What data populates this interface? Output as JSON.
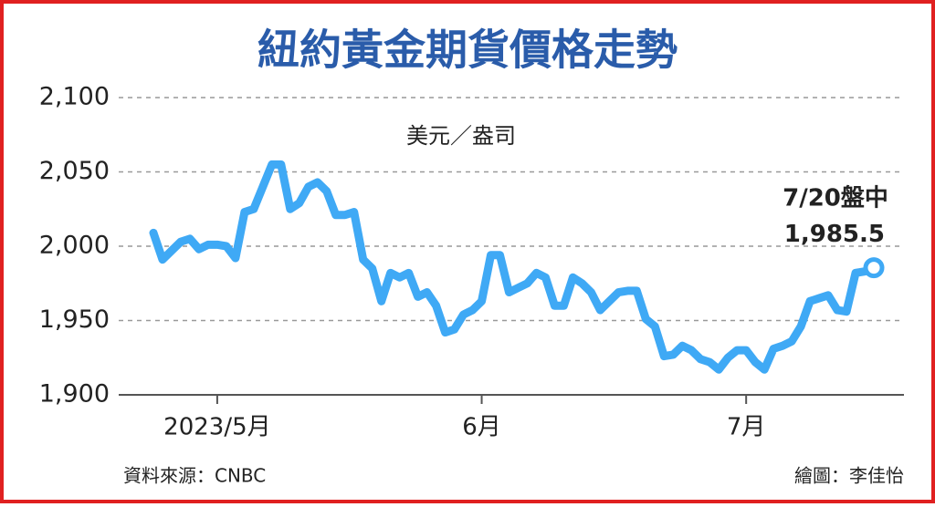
{
  "chart_data": {
    "type": "line",
    "title": "紐約黃金期貨價格走勢",
    "y_label": "美元／盎司",
    "annotation": "7/20盤中",
    "source": "資料來源：CNBC",
    "credit": "繪圖：李佳怡",
    "color": "#3fa9f5",
    "grid": true,
    "ylim": [
      1900,
      2100
    ],
    "yticks": [
      {
        "value": 1900,
        "label": "1,900"
      },
      {
        "value": 1950,
        "label": "1,950"
      },
      {
        "value": 2000,
        "label": "2,000"
      },
      {
        "value": 2050,
        "label": "2,050"
      },
      {
        "value": 2100,
        "label": "2,100"
      }
    ],
    "categories": [
      null,
      null,
      null,
      null,
      null,
      null,
      null,
      "2023/5月",
      null,
      null,
      null,
      null,
      null,
      null,
      null,
      null,
      null,
      null,
      null,
      null,
      null,
      null,
      null,
      null,
      null,
      null,
      null,
      null,
      null,
      null,
      null,
      null,
      null,
      null,
      null,
      null,
      "6月",
      null,
      null,
      null,
      null,
      null,
      null,
      null,
      null,
      null,
      null,
      null,
      null,
      null,
      null,
      null,
      null,
      null,
      null,
      null,
      null,
      null,
      null,
      null,
      null,
      null,
      null,
      null,
      null,
      "7月",
      null,
      null,
      null,
      null,
      null,
      null,
      null,
      null,
      null,
      null,
      null,
      null,
      null,
      null
    ],
    "values": [
      2009,
      1991,
      1997,
      2003,
      2005,
      1998,
      2001,
      2001,
      2000,
      1992,
      2023,
      2025,
      2040,
      2055,
      2055,
      2025,
      2029,
      2040,
      2043,
      2037,
      2021,
      2021,
      2023,
      1991,
      1985,
      1963,
      1982,
      1979,
      1982,
      1966,
      1969,
      1960,
      1942,
      1944,
      1954,
      1957,
      1963,
      1994,
      1994,
      1969,
      1972,
      1975,
      1982,
      1979,
      1960,
      1960,
      1979,
      1975,
      1969,
      1957,
      1963,
      1969,
      1970,
      1970,
      1951,
      1946,
      1926,
      1927,
      1933,
      1930,
      1924,
      1922,
      1917,
      1925,
      1930,
      1930,
      1922,
      1917,
      1931,
      1933,
      1936,
      1946,
      1963,
      1965,
      1967,
      1957,
      1956,
      1982,
      1983,
      1985.5
    ],
    "value_labels": [
      null,
      null,
      null,
      null,
      null,
      null,
      null,
      null,
      null,
      null,
      null,
      null,
      null,
      null,
      null,
      null,
      null,
      null,
      null,
      null,
      null,
      null,
      null,
      null,
      null,
      null,
      null,
      null,
      null,
      null,
      null,
      null,
      null,
      null,
      null,
      null,
      null,
      null,
      null,
      null,
      null,
      null,
      null,
      null,
      null,
      null,
      null,
      null,
      null,
      null,
      null,
      null,
      null,
      null,
      null,
      null,
      null,
      null,
      null,
      null,
      null,
      null,
      null,
      null,
      null,
      null,
      null,
      null,
      null,
      null,
      null,
      null,
      null,
      null,
      null,
      null,
      null,
      null,
      null,
      "1,985.5"
    ]
  }
}
